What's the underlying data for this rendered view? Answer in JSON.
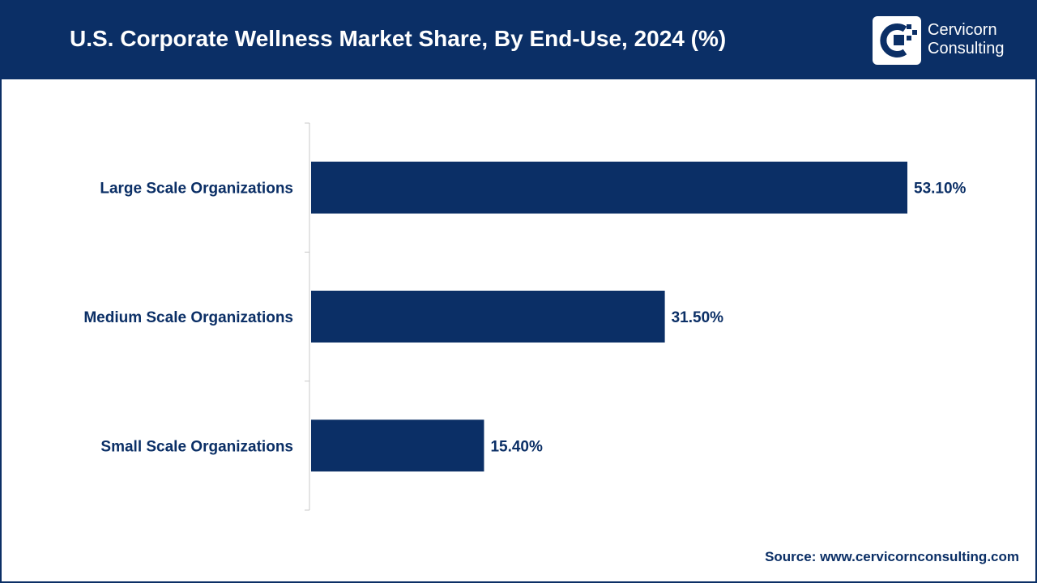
{
  "header": {
    "title": "U.S. Corporate Wellness Market Share, By End-Use, 2024 (%)"
  },
  "logo": {
    "line1": "Cervicorn",
    "line2": "Consulting"
  },
  "colors": {
    "primary": "#0b2f66",
    "bar": "#0b2f66",
    "axis": "#c8c8c8",
    "header_text": "#ffffff"
  },
  "chart_data": {
    "type": "bar",
    "orientation": "horizontal",
    "title": "U.S. Corporate Wellness Market Share, By End-Use, 2024 (%)",
    "categories": [
      "Large Scale Organizations",
      "Medium Scale Organizations",
      "Small Scale Organizations"
    ],
    "values": [
      53.1,
      31.5,
      15.4
    ],
    "value_labels": [
      "53.10%",
      "31.50%",
      "15.40%"
    ],
    "xlim": [
      0,
      53.1
    ],
    "unit": "%",
    "grid": false,
    "legend": "none"
  },
  "footer": {
    "source": "Source: www.cervicornconsulting.com"
  }
}
